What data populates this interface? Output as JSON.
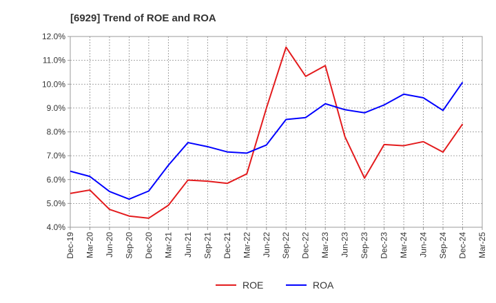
{
  "chart_data": {
    "type": "line",
    "title": "[6929]  Trend of ROE and ROA",
    "xlabel": "",
    "ylabel": "",
    "categories": [
      "Dec-19",
      "Mar-20",
      "Jun-20",
      "Sep-20",
      "Dec-20",
      "Mar-21",
      "Jun-21",
      "Sep-21",
      "Dec-21",
      "Mar-22",
      "Jun-22",
      "Sep-22",
      "Dec-22",
      "Mar-23",
      "Jun-23",
      "Sep-23",
      "Dec-23",
      "Mar-24",
      "Jun-24",
      "Sep-24",
      "Dec-24",
      "Mar-25"
    ],
    "ylim": [
      4.0,
      12.0
    ],
    "yticks": [
      4.0,
      5.0,
      6.0,
      7.0,
      8.0,
      9.0,
      10.0,
      11.0,
      12.0
    ],
    "ytick_labels": [
      "4.0%",
      "5.0%",
      "6.0%",
      "7.0%",
      "8.0%",
      "9.0%",
      "10.0%",
      "11.0%",
      "12.0%"
    ],
    "grid": true,
    "legend_position": "bottom-center",
    "series": [
      {
        "name": "ROE",
        "color": "#e31a1c",
        "values": [
          5.42,
          5.56,
          4.75,
          4.47,
          4.38,
          4.92,
          5.98,
          5.93,
          5.84,
          6.24,
          9.0,
          11.55,
          10.33,
          10.78,
          7.8,
          6.06,
          7.47,
          7.42,
          7.59,
          7.15,
          8.33,
          null
        ]
      },
      {
        "name": "ROA",
        "color": "#0000ff",
        "values": [
          6.35,
          6.13,
          5.5,
          5.18,
          5.52,
          6.6,
          7.55,
          7.38,
          7.16,
          7.11,
          7.45,
          8.52,
          8.6,
          9.18,
          8.93,
          8.8,
          9.13,
          9.58,
          9.43,
          8.9,
          10.08,
          null
        ]
      }
    ]
  }
}
